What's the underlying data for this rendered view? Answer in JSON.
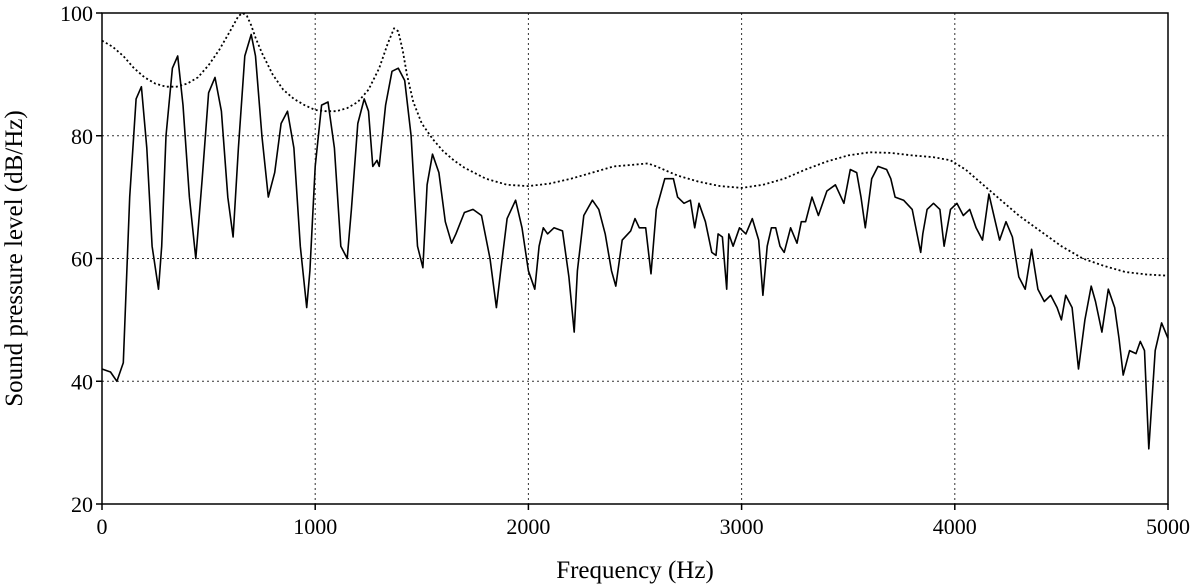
{
  "chart_data": {
    "type": "line",
    "title": "",
    "xlabel": "Frequency (Hz)",
    "ylabel": "Sound pressure level (dB/Hz)",
    "xlim": [
      0,
      5000
    ],
    "ylim": [
      20,
      100
    ],
    "x_ticks": [
      0,
      1000,
      2000,
      3000,
      4000,
      5000
    ],
    "y_ticks": [
      20,
      40,
      60,
      80,
      100
    ],
    "grid": true,
    "legend": "none",
    "series": [
      {
        "style": "solid",
        "color": "#000000",
        "x": [
          0,
          40,
          70,
          100,
          130,
          160,
          185,
          210,
          235,
          265,
          280,
          300,
          330,
          355,
          380,
          410,
          440,
          470,
          500,
          530,
          560,
          590,
          615,
          640,
          670,
          700,
          720,
          750,
          780,
          810,
          840,
          870,
          900,
          930,
          960,
          975,
          1000,
          1030,
          1060,
          1090,
          1120,
          1150,
          1170,
          1200,
          1230,
          1250,
          1270,
          1290,
          1300,
          1330,
          1360,
          1390,
          1420,
          1450,
          1480,
          1505,
          1525,
          1550,
          1580,
          1610,
          1640,
          1660,
          1700,
          1740,
          1780,
          1820,
          1850,
          1870,
          1900,
          1940,
          1970,
          2000,
          2030,
          2050,
          2070,
          2090,
          2120,
          2160,
          2190,
          2215,
          2230,
          2260,
          2300,
          2330,
          2360,
          2390,
          2410,
          2440,
          2480,
          2500,
          2520,
          2550,
          2575,
          2600,
          2640,
          2680,
          2700,
          2730,
          2760,
          2780,
          2800,
          2830,
          2860,
          2880,
          2890,
          2910,
          2930,
          2940,
          2960,
          2990,
          3020,
          3050,
          3080,
          3100,
          3120,
          3140,
          3160,
          3180,
          3200,
          3230,
          3260,
          3280,
          3300,
          3330,
          3360,
          3400,
          3440,
          3480,
          3510,
          3540,
          3560,
          3580,
          3610,
          3640,
          3680,
          3700,
          3720,
          3760,
          3800,
          3840,
          3850,
          3870,
          3900,
          3930,
          3950,
          3980,
          4010,
          4040,
          4070,
          4100,
          4130,
          4160,
          4190,
          4210,
          4240,
          4270,
          4300,
          4330,
          4360,
          4390,
          4420,
          4450,
          4480,
          4500,
          4520,
          4550,
          4580,
          4610,
          4640,
          4660,
          4690,
          4720,
          4750,
          4770,
          4790,
          4820,
          4850,
          4870,
          4890,
          4910,
          4940,
          4970,
          5000
        ],
        "values": [
          42,
          41.5,
          40,
          43,
          70,
          86,
          88,
          78,
          62,
          55,
          62,
          80,
          91,
          93,
          85,
          70,
          60,
          73,
          87,
          89.5,
          84,
          70,
          63.5,
          78,
          93,
          96.5,
          93,
          80,
          70,
          74,
          82,
          84,
          78,
          62,
          52,
          58,
          75,
          85,
          85.5,
          78,
          62,
          60,
          68,
          82,
          86,
          84,
          75,
          76,
          75,
          85,
          90.5,
          91,
          89,
          80,
          62,
          58.5,
          72,
          77,
          74,
          66,
          62.5,
          64,
          67.5,
          68,
          67,
          60,
          52,
          58,
          66.5,
          69.5,
          65,
          58,
          55,
          62,
          65,
          64,
          65,
          64.5,
          57,
          48,
          58,
          67,
          69.5,
          68,
          64,
          58,
          55.5,
          63,
          64.5,
          66.5,
          65,
          65,
          57.5,
          68,
          73,
          73,
          70,
          69,
          69.5,
          65,
          69,
          66,
          61,
          60.5,
          64,
          63.5,
          55,
          64,
          62,
          65,
          64,
          66.5,
          63,
          54,
          62,
          65,
          65,
          62,
          61,
          65,
          62.5,
          66,
          66,
          70,
          67,
          71,
          72,
          69,
          74.5,
          74,
          70,
          65,
          73,
          75,
          74.5,
          73,
          70,
          69.5,
          68,
          61,
          64,
          68,
          69,
          68,
          62,
          68,
          69,
          67,
          68,
          65,
          63,
          70.5,
          66,
          63,
          66,
          63.5,
          57,
          55,
          61.5,
          55,
          53,
          54,
          52,
          50,
          54,
          52,
          42,
          50,
          55.5,
          53,
          48,
          55,
          52,
          47,
          41,
          45,
          44.5,
          46.5,
          45,
          29,
          45,
          49.5,
          47
        ]
      },
      {
        "style": "dotted",
        "color": "#000000",
        "x": [
          0,
          50,
          100,
          150,
          200,
          250,
          300,
          350,
          400,
          450,
          500,
          550,
          600,
          640,
          660,
          680,
          700,
          720,
          750,
          800,
          850,
          900,
          950,
          1000,
          1050,
          1100,
          1150,
          1200,
          1250,
          1300,
          1340,
          1370,
          1390,
          1410,
          1430,
          1460,
          1500,
          1550,
          1600,
          1650,
          1700,
          1800,
          1900,
          2000,
          2100,
          2200,
          2300,
          2400,
          2500,
          2560,
          2600,
          2700,
          2800,
          2900,
          3000,
          3100,
          3200,
          3300,
          3400,
          3500,
          3600,
          3700,
          3800,
          3900,
          3980,
          4050,
          4100,
          4150,
          4200,
          4300,
          4400,
          4500,
          4600,
          4700,
          4800,
          4900,
          5000
        ],
        "values": [
          95.5,
          94.5,
          93,
          91,
          89.5,
          88.5,
          88,
          88,
          88.5,
          89.5,
          91.5,
          94,
          97,
          99.5,
          100,
          99.5,
          98,
          96,
          93.5,
          90,
          87.5,
          86,
          85,
          84.2,
          84,
          84,
          84.5,
          85.5,
          87.5,
          91,
          95,
          97.5,
          97,
          94,
          90,
          85.5,
          82,
          79.5,
          77.5,
          76,
          74.8,
          73,
          72,
          71.8,
          72.2,
          73,
          74,
          75,
          75.3,
          75.5,
          75,
          73.5,
          72.5,
          71.8,
          71.5,
          72,
          73,
          74.5,
          75.8,
          76.8,
          77.3,
          77.2,
          76.8,
          76.5,
          76,
          74.5,
          73,
          71.5,
          70,
          67,
          64.5,
          62,
          60,
          58.8,
          57.8,
          57.4,
          57.2
        ]
      }
    ]
  }
}
